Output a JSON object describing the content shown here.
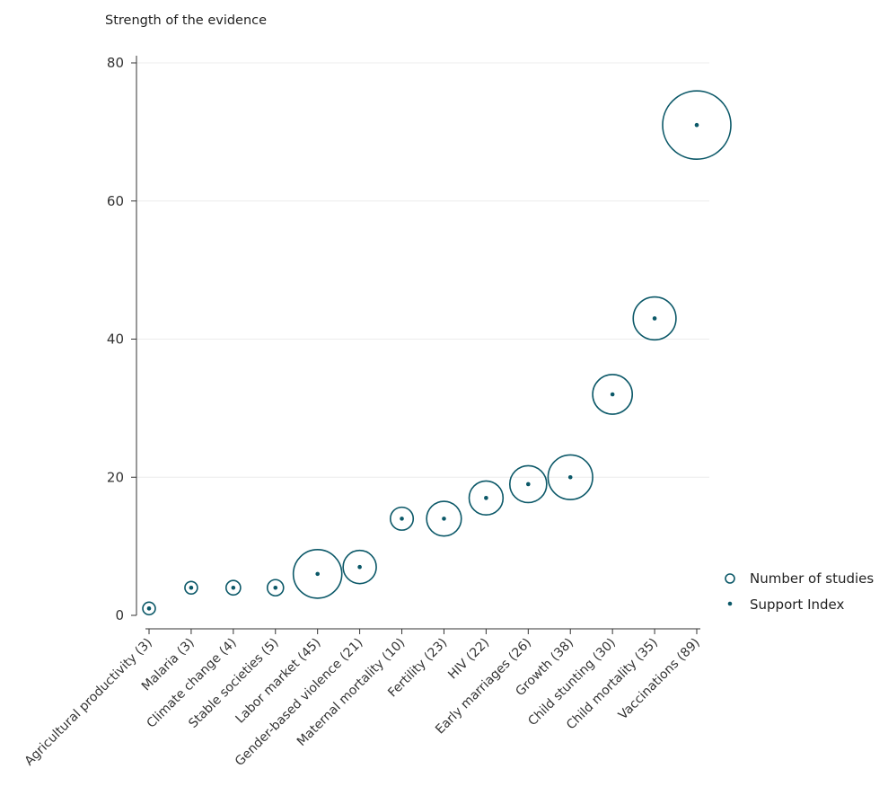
{
  "chart_data": {
    "type": "scatter",
    "ylabel": "Strength of the evidence",
    "ylim": [
      0,
      80
    ],
    "yticks": [
      0,
      20,
      40,
      60,
      80
    ],
    "grid": "horizontal",
    "legend_position": "right",
    "categories": [
      "Agricultural productivity (3)",
      "Malaria (3)",
      "Climate change (4)",
      "Stable societies (5)",
      "Labor market (45)",
      "Gender-based violence (21)",
      "Maternal mortality (10)",
      "Fertility (23)",
      "HIV (22)",
      "Early marriages (26)",
      "Growth (38)",
      "Child stunting (30)",
      "Child mortality (35)",
      "Vaccinations (89)"
    ],
    "series": [
      {
        "name": "Number of studies",
        "marker": "hollow-circle",
        "values": [
          3,
          3,
          4,
          5,
          45,
          21,
          10,
          23,
          22,
          26,
          38,
          30,
          35,
          89
        ]
      },
      {
        "name": "Support Index",
        "marker": "dot",
        "values": [
          1,
          4,
          4,
          4,
          6,
          7,
          14,
          14,
          17,
          19,
          20,
          32,
          43,
          71
        ]
      }
    ],
    "colors": {
      "marker": "#0b5868",
      "axis": "#333333",
      "grid": "#ececec"
    }
  }
}
